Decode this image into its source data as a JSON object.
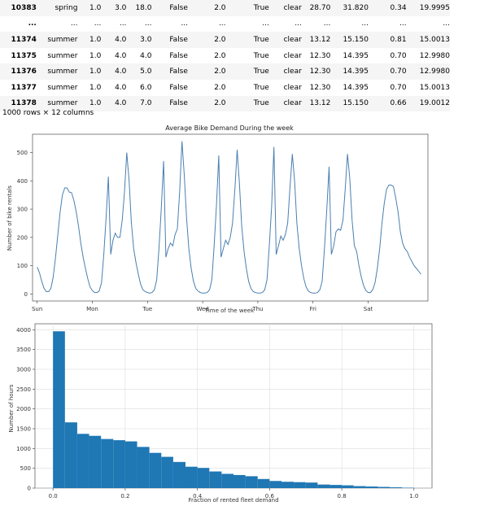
{
  "table": {
    "rows": [
      [
        "10383",
        "spring",
        "1.0",
        "3.0",
        "18.0",
        "False",
        "2.0",
        "True",
        "clear",
        "28.70",
        "31.820",
        "0.34",
        "19.9995"
      ],
      [
        "...",
        "...",
        "...",
        "...",
        "...",
        "...",
        "...",
        "...",
        "...",
        "...",
        "...",
        "...",
        "..."
      ],
      [
        "11374",
        "summer",
        "1.0",
        "4.0",
        "3.0",
        "False",
        "2.0",
        "True",
        "clear",
        "13.12",
        "15.150",
        "0.81",
        "15.0013"
      ],
      [
        "11375",
        "summer",
        "1.0",
        "4.0",
        "4.0",
        "False",
        "2.0",
        "True",
        "clear",
        "12.30",
        "14.395",
        "0.70",
        "12.9980"
      ],
      [
        "11376",
        "summer",
        "1.0",
        "4.0",
        "5.0",
        "False",
        "2.0",
        "True",
        "clear",
        "12.30",
        "14.395",
        "0.70",
        "12.9980"
      ],
      [
        "11377",
        "summer",
        "1.0",
        "4.0",
        "6.0",
        "False",
        "2.0",
        "True",
        "clear",
        "12.30",
        "14.395",
        "0.70",
        "15.0013"
      ],
      [
        "11378",
        "summer",
        "1.0",
        "4.0",
        "7.0",
        "False",
        "2.0",
        "True",
        "clear",
        "13.12",
        "15.150",
        "0.66",
        "19.0012"
      ]
    ],
    "row_count_text": "1000 rows × 12 columns"
  },
  "chart_data": [
    {
      "type": "line",
      "title": "Average Bike Demand During the week",
      "xlabel": "Time of the week",
      "ylabel": "Number of bike rentals",
      "x_tick_labels": [
        "Sun",
        "Mon",
        "Tue",
        "Wed",
        "Thu",
        "Fri",
        "Sat"
      ],
      "y_ticks": [
        0,
        100,
        200,
        300,
        400,
        500
      ],
      "xlim": [
        -2,
        170
      ],
      "ylim": [
        -25,
        565
      ],
      "color": "#4a7fb0",
      "series": [
        {
          "x": [
            0,
            1,
            2,
            3,
            4,
            5,
            6,
            7,
            8,
            9,
            10,
            11,
            12,
            13,
            14,
            15,
            16,
            17,
            18,
            19,
            20,
            21,
            22,
            23,
            24,
            25,
            26,
            27,
            28,
            29,
            30,
            31,
            32,
            33,
            34,
            35,
            36,
            37,
            38,
            39,
            40,
            41,
            42,
            43,
            44,
            45,
            46,
            47,
            48,
            49,
            50,
            51,
            52,
            53,
            54,
            55,
            56,
            57,
            58,
            59,
            60,
            61,
            62,
            63,
            64,
            65,
            66,
            67,
            68,
            69,
            70,
            71,
            72,
            73,
            74,
            75,
            76,
            77,
            78,
            79,
            80,
            81,
            82,
            83,
            84,
            85,
            86,
            87,
            88,
            89,
            90,
            91,
            92,
            93,
            94,
            95,
            96,
            97,
            98,
            99,
            100,
            101,
            102,
            103,
            104,
            105,
            106,
            107,
            108,
            109,
            110,
            111,
            112,
            113,
            114,
            115,
            116,
            117,
            118,
            119,
            120,
            121,
            122,
            123,
            124,
            125,
            126,
            127,
            128,
            129,
            130,
            131,
            132,
            133,
            134,
            135,
            136,
            137,
            138,
            139,
            140,
            141,
            142,
            143,
            144,
            145,
            146,
            147,
            148,
            149,
            150,
            151,
            152,
            153,
            154,
            155,
            156,
            157,
            158,
            159,
            160,
            161,
            162,
            163,
            164,
            165,
            166,
            167
          ],
          "y": [
            95,
            75,
            45,
            20,
            8,
            8,
            20,
            60,
            130,
            210,
            290,
            350,
            375,
            375,
            360,
            358,
            330,
            290,
            240,
            180,
            130,
            90,
            55,
            25,
            12,
            5,
            5,
            10,
            40,
            140,
            270,
            415,
            140,
            190,
            215,
            200,
            200,
            260,
            360,
            500,
            400,
            250,
            160,
            110,
            70,
            35,
            15,
            8,
            5,
            3,
            5,
            15,
            50,
            160,
            300,
            470,
            130,
            160,
            180,
            170,
            210,
            230,
            360,
            540,
            420,
            270,
            160,
            90,
            45,
            20,
            10,
            5,
            3,
            3,
            5,
            15,
            50,
            170,
            310,
            490,
            130,
            160,
            190,
            175,
            200,
            250,
            370,
            510,
            390,
            240,
            150,
            90,
            45,
            20,
            8,
            5,
            3,
            3,
            5,
            15,
            50,
            170,
            310,
            520,
            140,
            170,
            205,
            190,
            210,
            250,
            380,
            495,
            400,
            250,
            160,
            100,
            55,
            25,
            10,
            5,
            3,
            3,
            5,
            15,
            45,
            160,
            300,
            450,
            140,
            170,
            220,
            230,
            225,
            260,
            370,
            495,
            410,
            260,
            170,
            150,
            100,
            60,
            30,
            12,
            5,
            5,
            15,
            40,
            90,
            160,
            250,
            320,
            370,
            385,
            385,
            380,
            340,
            290,
            220,
            180,
            160,
            150,
            130,
            115,
            100,
            90,
            80,
            70
          ]
        }
      ]
    },
    {
      "type": "bar",
      "title": "",
      "xlabel": "Fraction of rented fleet demand",
      "ylabel": "Number of hours",
      "x_ticks": [
        0.0,
        0.2,
        0.4,
        0.6,
        0.8,
        1.0
      ],
      "y_ticks": [
        0,
        500,
        1000,
        1500,
        2000,
        2500,
        3000,
        3500,
        4000
      ],
      "xlim": [
        -0.05,
        1.05
      ],
      "ylim": [
        0,
        4150
      ],
      "grid": true,
      "color": "#1f77b4",
      "bin_edges": [
        0.0,
        0.033,
        0.067,
        0.1,
        0.133,
        0.167,
        0.2,
        0.233,
        0.267,
        0.3,
        0.333,
        0.367,
        0.4,
        0.433,
        0.467,
        0.5,
        0.533,
        0.567,
        0.6,
        0.633,
        0.667,
        0.7,
        0.733,
        0.767,
        0.8,
        0.833,
        0.867,
        0.9,
        0.933,
        0.967,
        1.0
      ],
      "values": [
        3960,
        1660,
        1370,
        1320,
        1240,
        1210,
        1180,
        1040,
        890,
        790,
        660,
        540,
        510,
        420,
        360,
        330,
        300,
        230,
        180,
        160,
        150,
        140,
        90,
        80,
        70,
        50,
        40,
        30,
        20,
        10
      ]
    }
  ]
}
